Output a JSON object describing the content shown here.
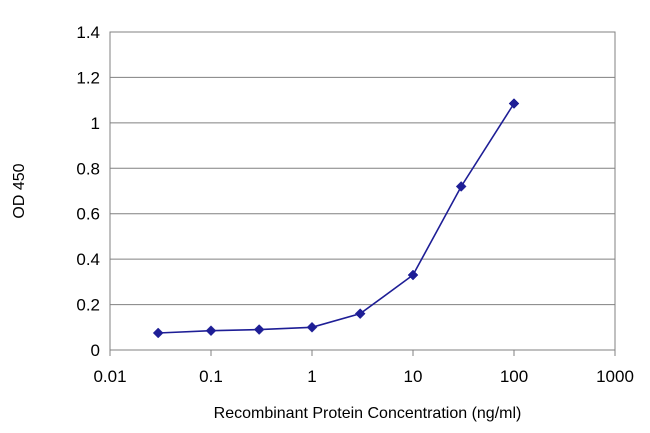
{
  "chart_data": {
    "type": "line",
    "xlabel": "Recombinant Protein Concentration (ng/ml)",
    "ylabel": "OD 450",
    "xscale": "log",
    "xlim": [
      0.01,
      1000
    ],
    "ylim": [
      0,
      1.4
    ],
    "xticks": [
      0.01,
      0.1,
      1,
      10,
      100,
      1000
    ],
    "xtick_labels": [
      "0.01",
      "0.1",
      "1",
      "10",
      "100",
      "1000"
    ],
    "yticks": [
      0,
      0.2,
      0.4,
      0.6,
      0.8,
      1,
      1.2,
      1.4
    ],
    "ytick_labels": [
      "0",
      "0.2",
      "0.4",
      "0.6",
      "0.8",
      "1",
      "1.2",
      "1.4"
    ],
    "grid": "horizontal",
    "legend": "none",
    "series": [
      {
        "x": [
          0.03,
          0.1,
          0.3,
          1,
          3,
          10,
          30,
          100
        ],
        "y": [
          0.075,
          0.085,
          0.09,
          0.1,
          0.16,
          0.33,
          0.72,
          1.085
        ],
        "color": "#1e1e96",
        "marker": "diamond"
      }
    ]
  }
}
